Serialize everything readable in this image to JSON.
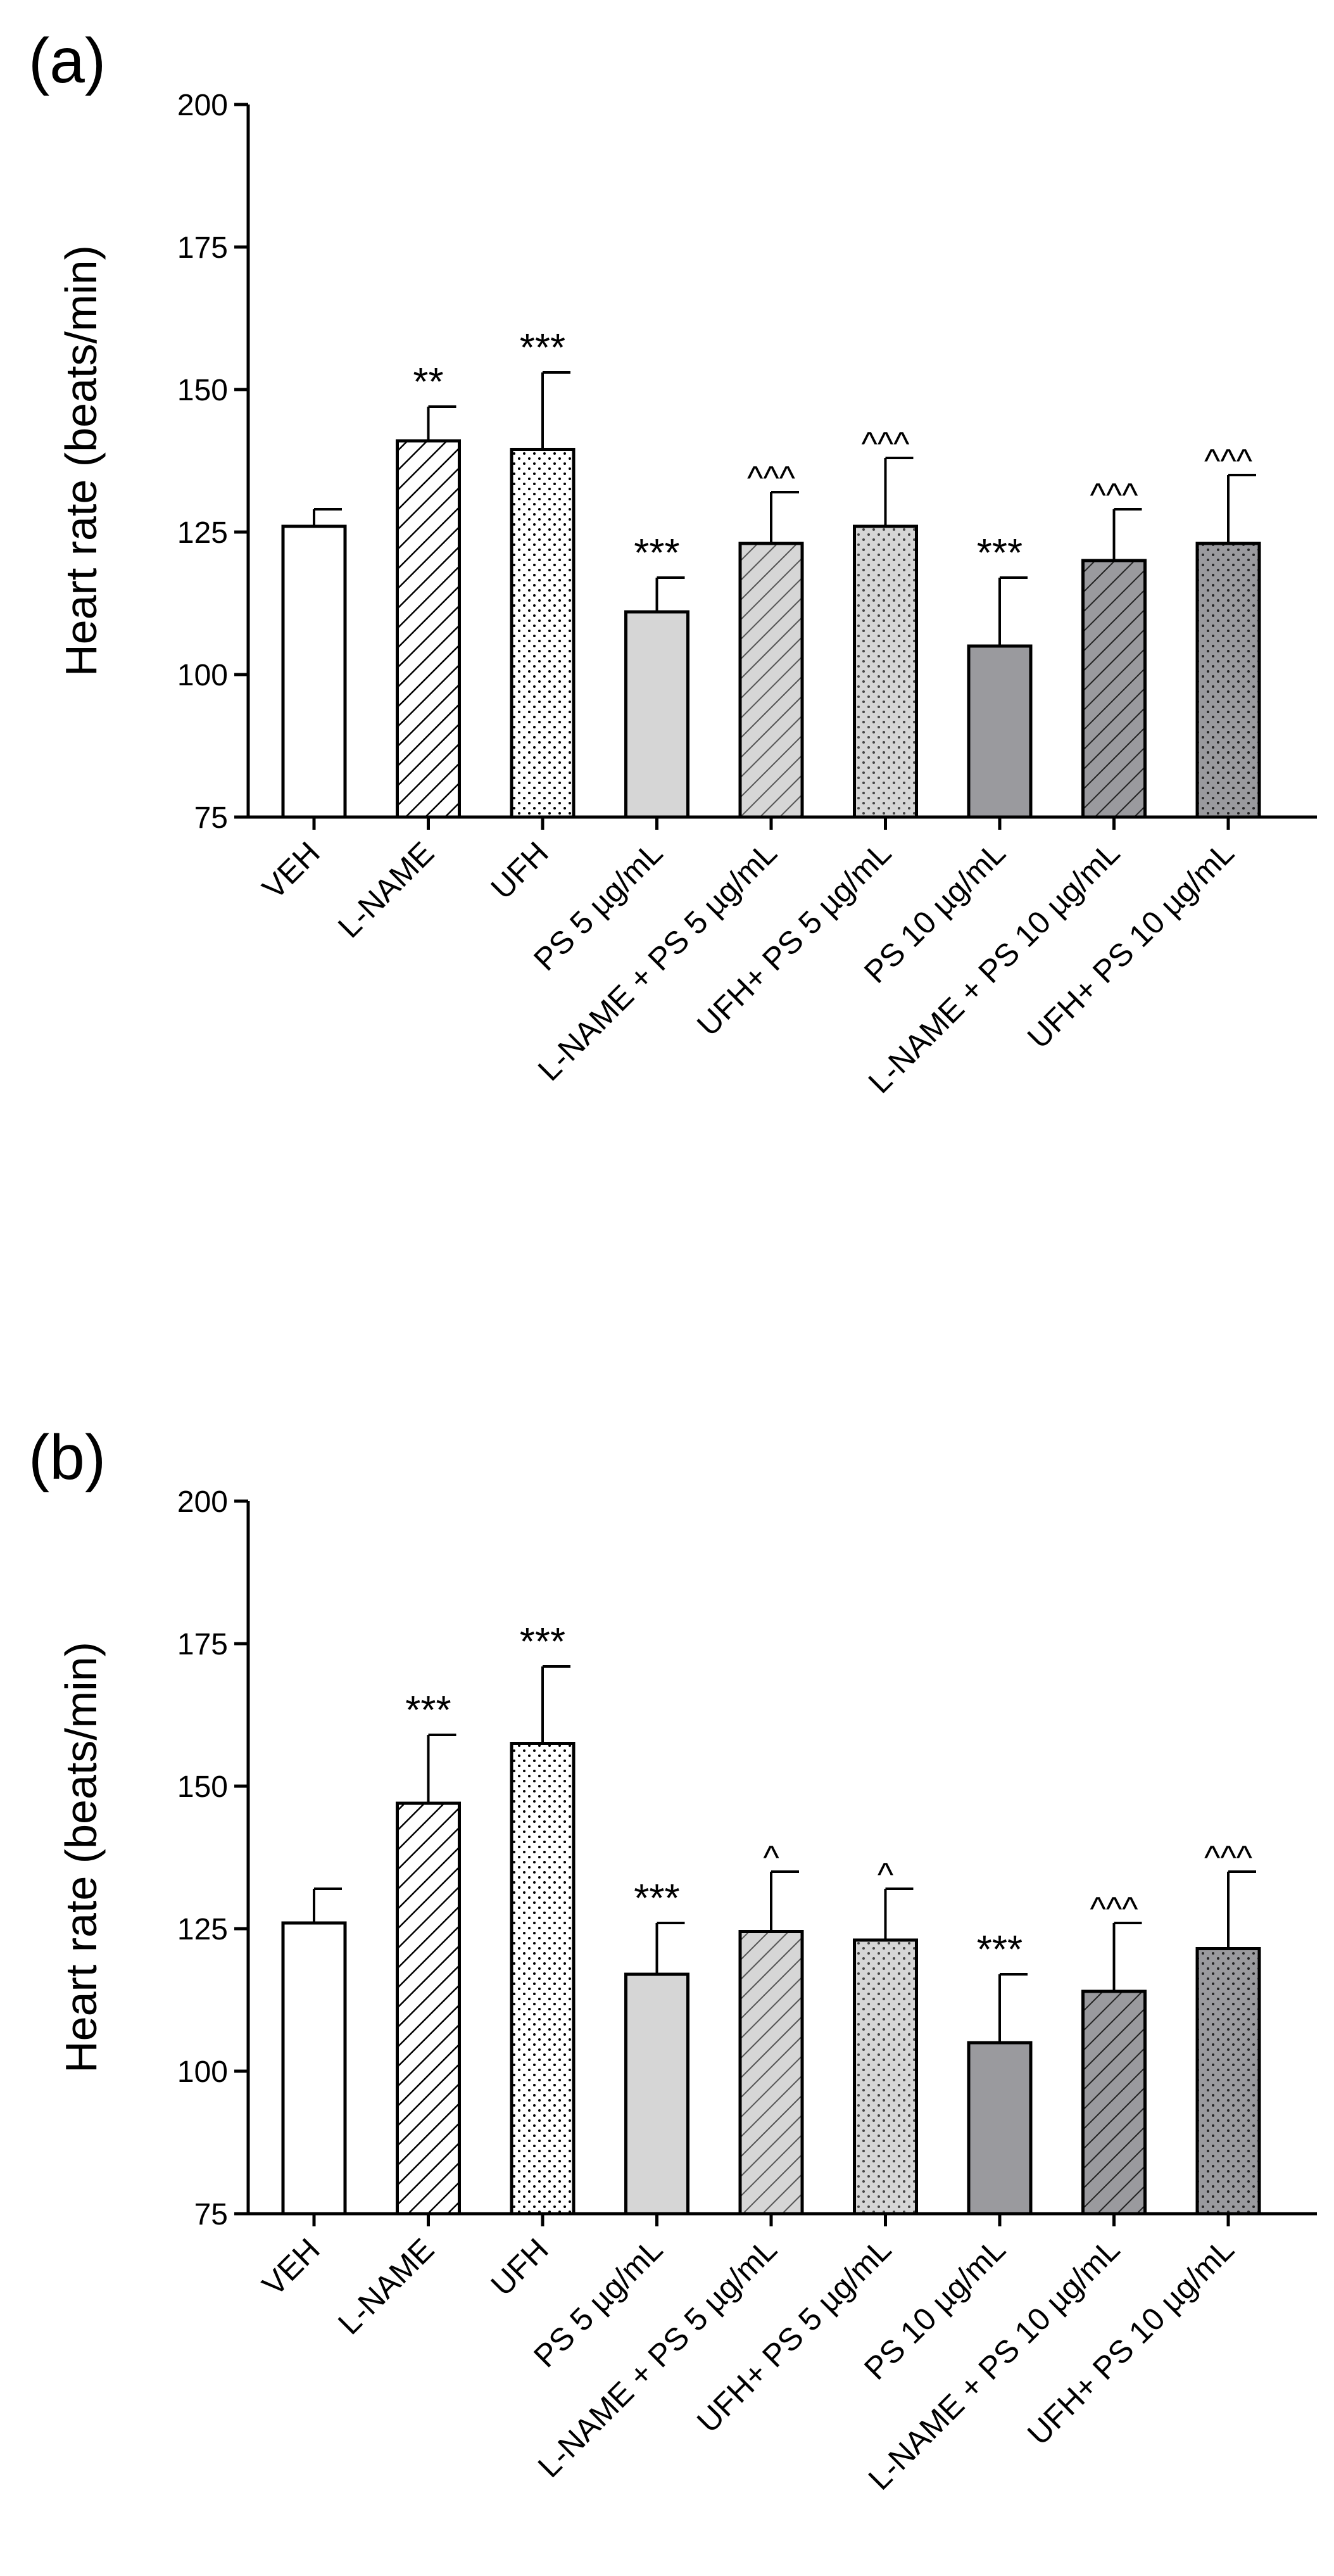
{
  "chart_data": [
    {
      "type": "bar",
      "panel_label": "(a)",
      "ylabel": "Heart rate (beats/min)",
      "ylim": [
        75,
        200
      ],
      "yticks": [
        75,
        100,
        125,
        150,
        175,
        200
      ],
      "categories": [
        "VEH",
        "L-NAME",
        "UFH",
        "PS 5 µg/mL",
        "L-NAME + PS 5 µg/mL",
        "UFH+ PS 5 µg/mL",
        "PS 10 µg/mL",
        "L-NAME + PS 10 µg/mL",
        "UFH+ PS 10 µg/mL"
      ],
      "values": [
        126,
        141,
        139.5,
        111,
        123,
        126,
        105,
        120,
        123
      ],
      "errors": [
        3,
        6,
        13.5,
        6,
        9,
        12,
        12,
        9,
        12
      ],
      "significance": [
        "",
        "**",
        "***",
        "***",
        "^^^",
        "^^^",
        "***",
        "^^^",
        "^^^"
      ],
      "fills": [
        "white",
        "hatch",
        "dots",
        "light-gray",
        "light-gray-hatch",
        "light-gray-dots",
        "dark-gray",
        "dark-gray-hatch",
        "dark-gray-dots"
      ]
    },
    {
      "type": "bar",
      "panel_label": "(b)",
      "ylabel": "Heart rate (beats/min)",
      "ylim": [
        75,
        200
      ],
      "yticks": [
        75,
        100,
        125,
        150,
        175,
        200
      ],
      "categories": [
        "VEH",
        "L-NAME",
        "UFH",
        "PS 5 µg/mL",
        "L-NAME + PS 5 µg/mL",
        "UFH+ PS 5 µg/mL",
        "PS 10 µg/mL",
        "L-NAME + PS 10 µg/mL",
        "UFH+ PS 10 µg/mL"
      ],
      "values": [
        126,
        147,
        157.5,
        117,
        124.5,
        123,
        105,
        114,
        121.5
      ],
      "errors": [
        6,
        12,
        13.5,
        9,
        10.5,
        9,
        12,
        12,
        13.5
      ],
      "significance": [
        "",
        "***",
        "***",
        "***",
        "^",
        "^",
        "***",
        "^^^",
        "^^^"
      ],
      "fills": [
        "white",
        "hatch",
        "dots",
        "light-gray",
        "light-gray-hatch",
        "light-gray-dots",
        "dark-gray",
        "dark-gray-hatch",
        "dark-gray-dots"
      ]
    }
  ],
  "colors": {
    "axis": "#000000",
    "light_gray": "#d6d6d6",
    "dark_gray": "#9a9a9e",
    "white": "#ffffff"
  }
}
